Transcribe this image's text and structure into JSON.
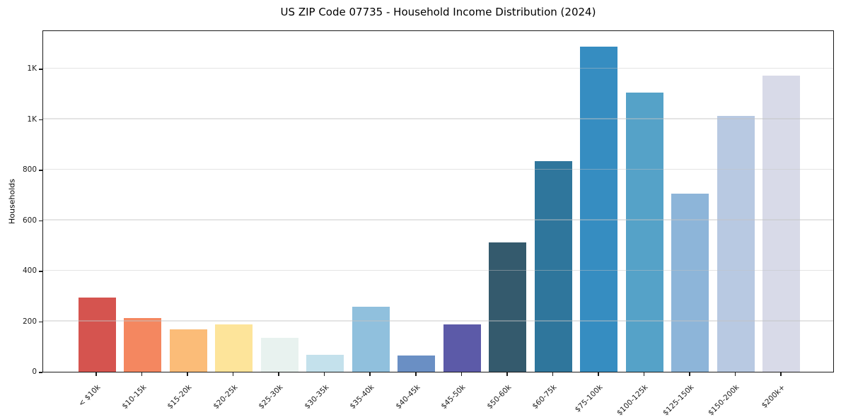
{
  "chart_data": {
    "type": "bar",
    "title": "US ZIP Code 07735 - Household Income Distribution (2024)",
    "ylabel": "Households",
    "xlabel": "",
    "categories": [
      "< $10k",
      "$10-15k",
      "$15-20k",
      "$20-25k",
      "$25-30k",
      "$30-35k",
      "$35-40k",
      "$40-45k",
      "$45-50k",
      "$50-60k",
      "$60-75k",
      "$75-100k",
      "$100-125k",
      "$125-150k",
      "$150-200k",
      "$200k+"
    ],
    "values": [
      295,
      212,
      167,
      187,
      134,
      68,
      258,
      65,
      187,
      512,
      833,
      1288,
      1105,
      705,
      1014,
      1172
    ],
    "bar_colors": [
      "#d5544f",
      "#f48760",
      "#fbbc78",
      "#fde49a",
      "#e8f2ef",
      "#c4e1ec",
      "#90c0dd",
      "#6a8fc4",
      "#5c5aa8",
      "#345a6d",
      "#2f769c",
      "#368dc1",
      "#55a2c8",
      "#8db5d9",
      "#b8c9e2",
      "#d8dae8"
    ],
    "yticks": [
      {
        "value": 0,
        "label": "0"
      },
      {
        "value": 200,
        "label": "200"
      },
      {
        "value": 400,
        "label": "400"
      },
      {
        "value": 600,
        "label": "600"
      },
      {
        "value": 800,
        "label": "800"
      },
      {
        "value": 1000,
        "label": "1K"
      },
      {
        "value": 1200,
        "label": "1K"
      }
    ],
    "ylim": [
      0,
      1354
    ],
    "grid": "horizontal",
    "legend": "none",
    "background_color": "#ffffff",
    "spine_color": "#1a1a1a",
    "gridline_color": "#e9e9e9"
  }
}
